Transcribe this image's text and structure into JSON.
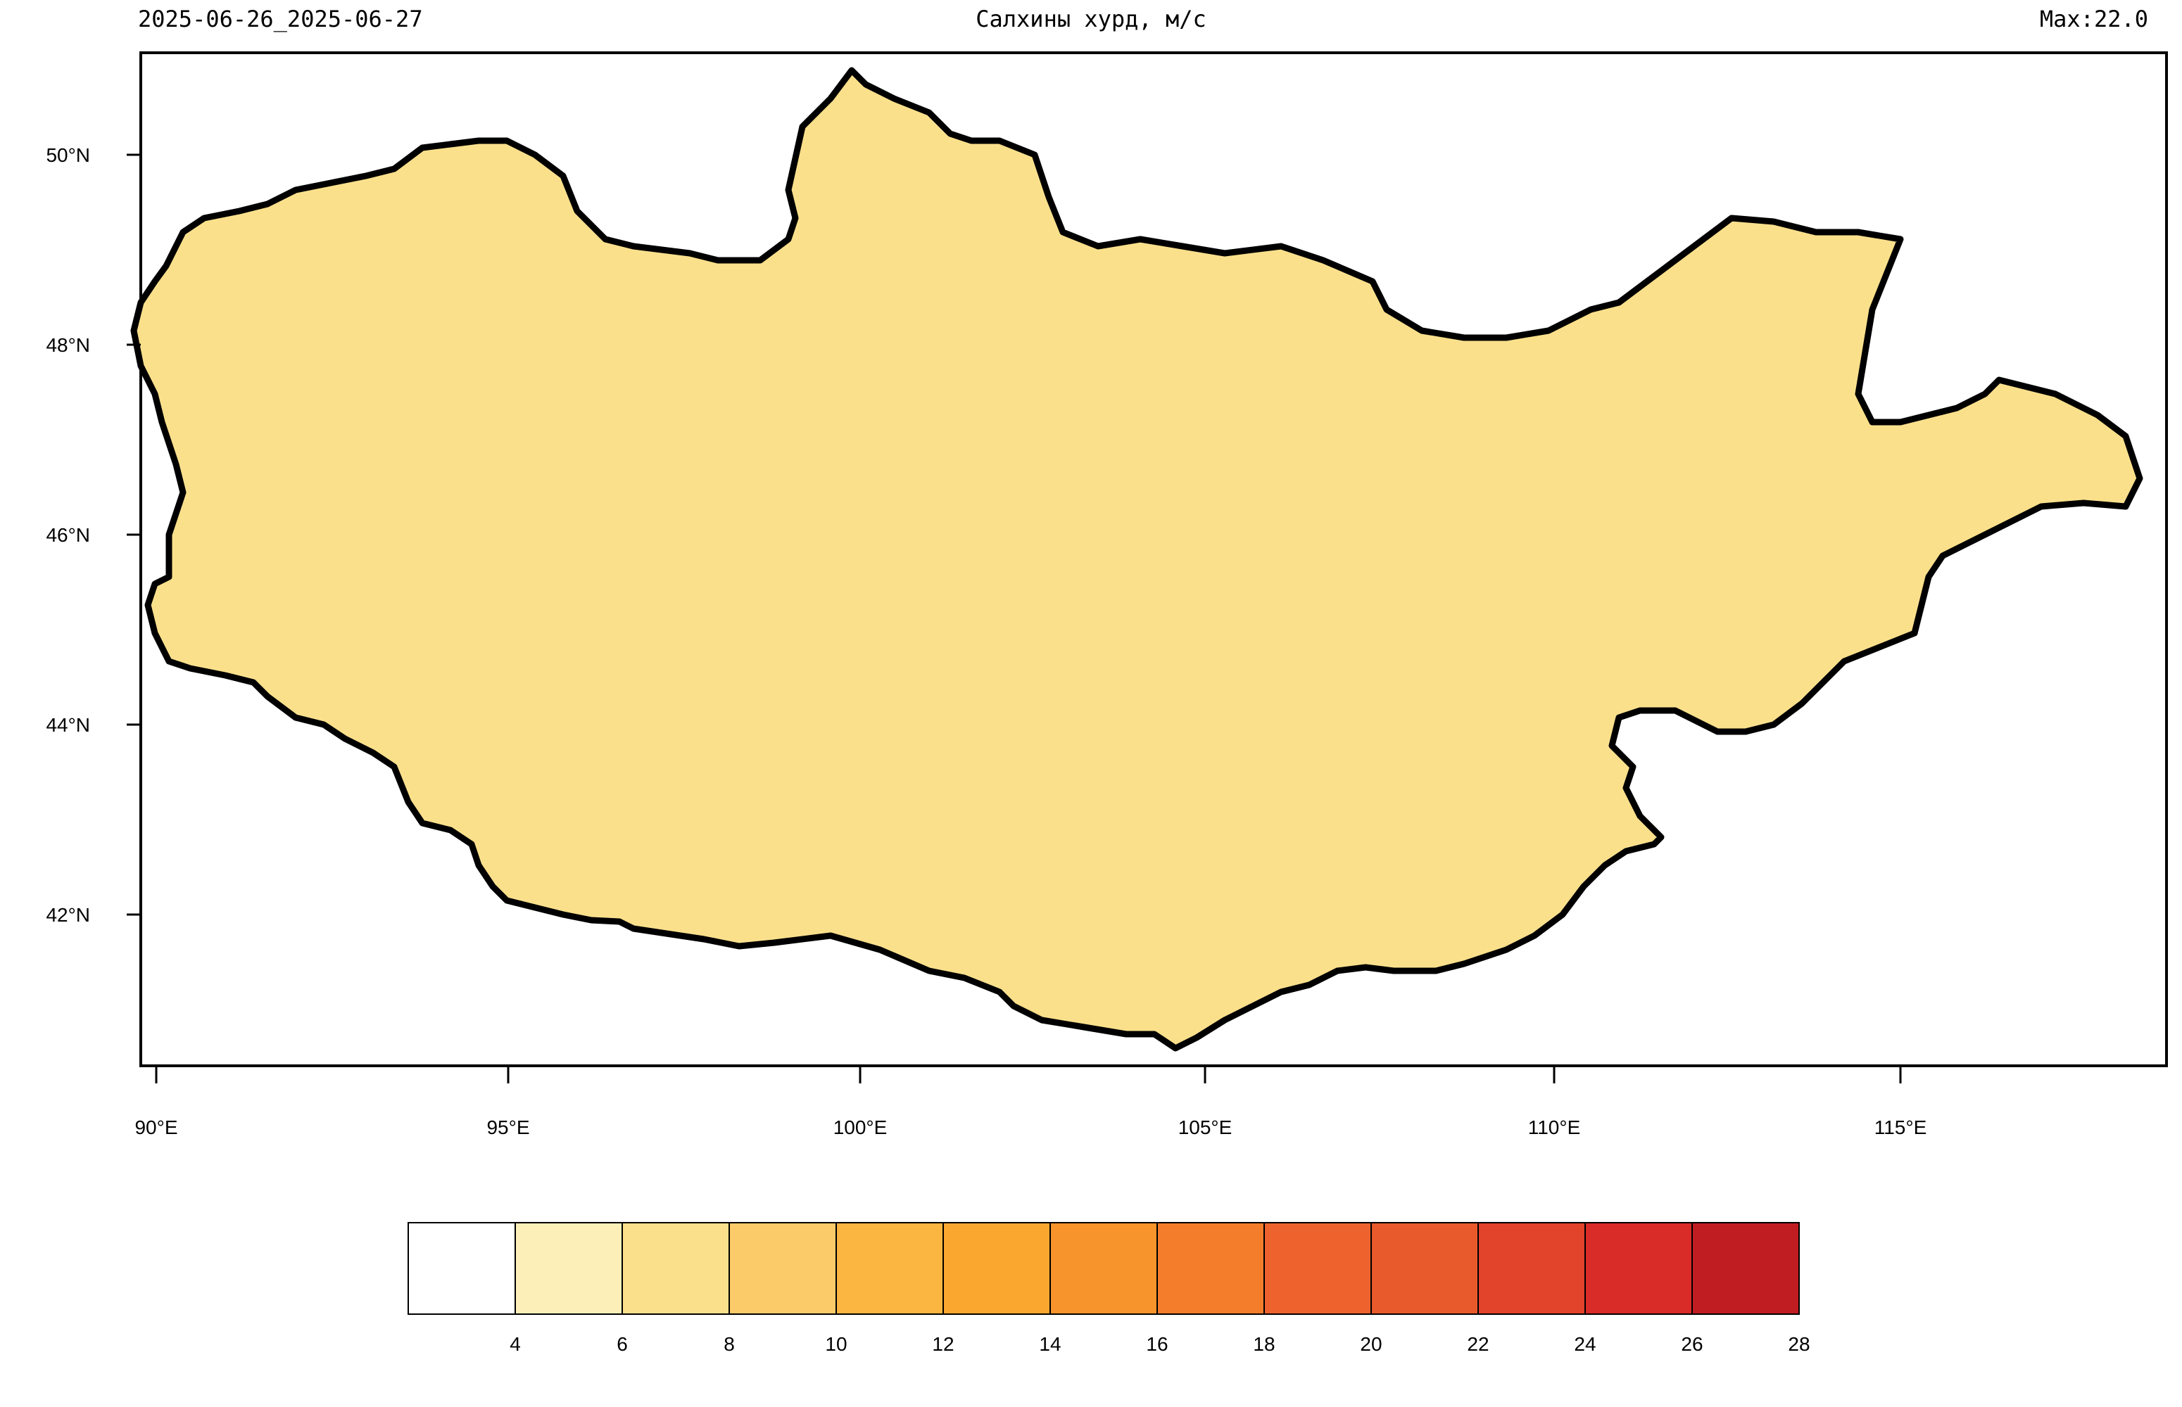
{
  "header": {
    "date_range": "2025-06-26_2025-06-27",
    "title": "Салхины хурд, м/с",
    "max_label": "Max:22.0"
  },
  "axes": {
    "lat_labels": [
      "50°N",
      "48°N",
      "46°N",
      "44°N",
      "42°N"
    ],
    "lon_labels": [
      "90°E",
      "95°E",
      "100°E",
      "105°E",
      "110°E",
      "115°E"
    ]
  },
  "colorbar": {
    "levels": [
      "4",
      "6",
      "8",
      "10",
      "12",
      "14",
      "16",
      "18",
      "20",
      "22",
      "24",
      "26",
      "28"
    ],
    "colors": [
      "#ffffff",
      "#fcefb8",
      "#fbe08c",
      "#fbcb6a",
      "#fbb541",
      "#f9a72f",
      "#f7942b",
      "#f47d2b",
      "#ee632d",
      "#e85a2c",
      "#e2432b",
      "#d92b27",
      "#c01d23"
    ]
  }
}
